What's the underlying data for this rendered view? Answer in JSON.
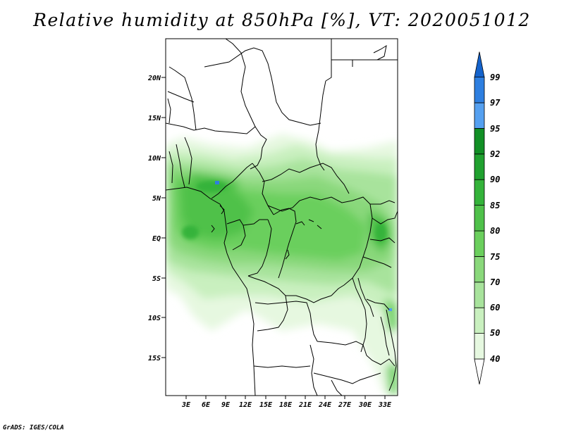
{
  "title": "Relative humidity at 850hPa [%], VT: 2020051012",
  "credit": "GrADS: IGES/COLA",
  "map": {
    "lon_labels": [
      "3E",
      "6E",
      "9E",
      "12E",
      "15E",
      "18E",
      "21E",
      "24E",
      "27E",
      "30E",
      "33E"
    ],
    "lat_labels": [
      "20N",
      "15N",
      "10N",
      "5N",
      "EQ",
      "5S",
      "10S",
      "15S"
    ]
  },
  "colorbar": {
    "levels": [
      "40",
      "50",
      "60",
      "70",
      "75",
      "80",
      "85",
      "90",
      "92",
      "95",
      "97",
      "99"
    ],
    "colors": [
      "#ffffff",
      "#e6f8e0",
      "#c9f0bf",
      "#a8e39c",
      "#8ad87b",
      "#6bcf5d",
      "#4fc14a",
      "#34b33a",
      "#20a12f",
      "#118f25",
      "#55a0f0",
      "#2e7fe0",
      "#1463cc"
    ]
  }
}
